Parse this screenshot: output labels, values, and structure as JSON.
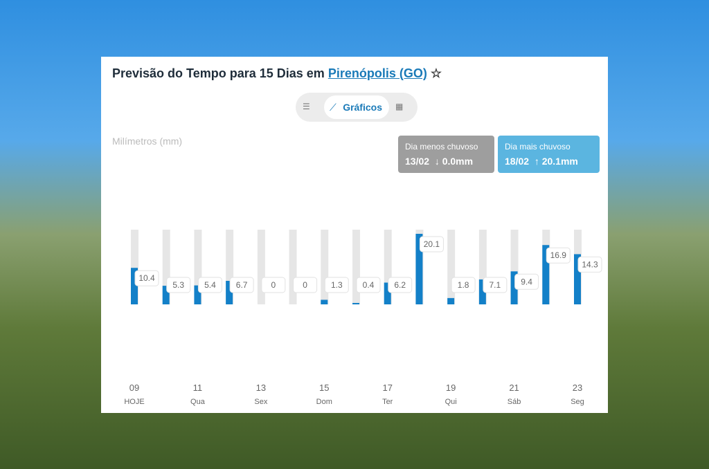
{
  "header": {
    "title": "Previsão do Tempo para 15 Dias em",
    "link": "Pirenópolis (GO)"
  },
  "tabs": {
    "active": "Gráficos"
  },
  "stats": [
    {
      "label": "Dia menos chuvoso",
      "date": "13/02",
      "value": "0.0mm"
    },
    {
      "label": "Dia mais chuvoso",
      "date": "18/02",
      "value": "20.1mm"
    }
  ],
  "chart_data": {
    "type": "bar",
    "y_label": "Milímetros (mm)",
    "categories": [
      "09",
      null,
      "11",
      null,
      "13",
      null,
      "15",
      null,
      "17",
      null,
      "19",
      null,
      "21",
      null,
      "23"
    ],
    "weekdays": [
      "HOJE",
      null,
      "Qua",
      null,
      "Sex",
      null,
      "Dom",
      null,
      "Ter",
      null,
      "Qui",
      null,
      "Sáb",
      null,
      "Seg"
    ],
    "values": [
      10.4,
      5.3,
      5.4,
      6.7,
      0,
      0,
      1.3,
      0.4,
      6.2,
      20.1,
      1.8,
      7.1,
      9.4,
      16.9,
      14.3
    ],
    "color": "#1380c8"
  }
}
